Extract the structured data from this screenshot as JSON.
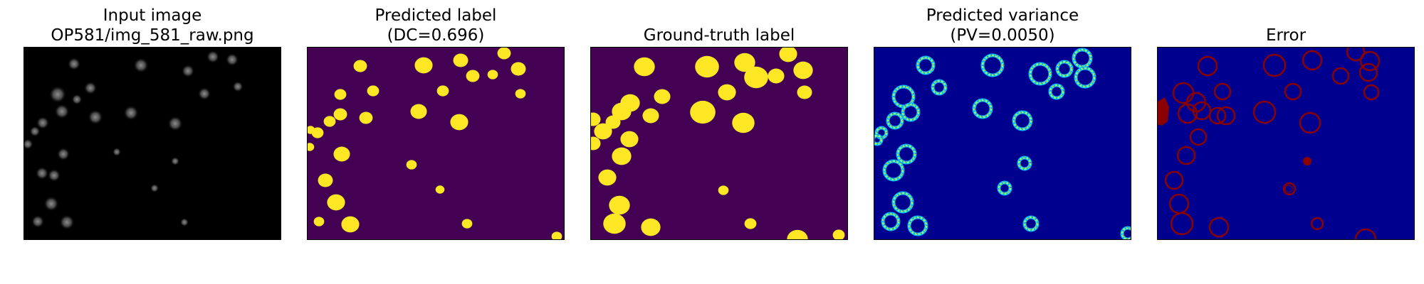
{
  "panels": [
    {
      "title_line1": "Input image",
      "title_line2": "OP581/img_581_raw.png",
      "kind": "raw",
      "background": "#000000"
    },
    {
      "title_line1": "Predicted label",
      "title_line2": "(DC=0.696)",
      "kind": "label",
      "background": "#440154",
      "foreground": "#fde725"
    },
    {
      "title_line1": "",
      "title_line2": "Ground-truth label",
      "kind": "label",
      "background": "#440154",
      "foreground": "#fde725"
    },
    {
      "title_line1": "Predicted variance",
      "title_line2": "(PV=0.0050)",
      "kind": "variance",
      "background": "#00008f"
    },
    {
      "title_line1": "",
      "title_line2": "Error",
      "kind": "error",
      "background": "#00008f",
      "foreground": "#8b0000"
    }
  ]
}
